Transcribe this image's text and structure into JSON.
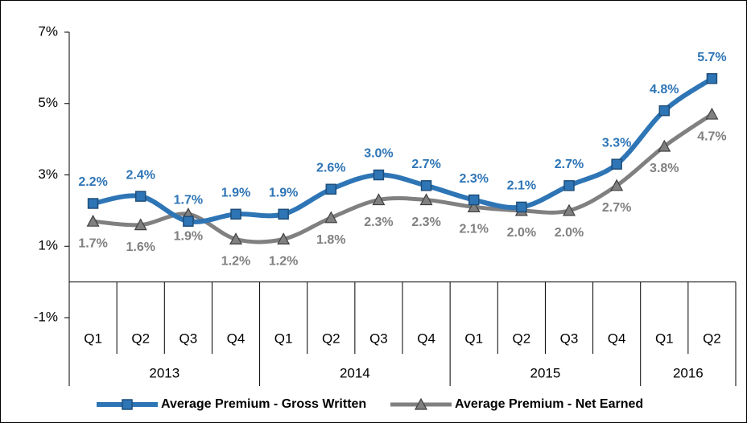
{
  "chart_data": {
    "type": "line",
    "categories": [
      "Q1",
      "Q2",
      "Q3",
      "Q4",
      "Q1",
      "Q2",
      "Q3",
      "Q4",
      "Q1",
      "Q2",
      "Q3",
      "Q4",
      "Q1",
      "Q2"
    ],
    "year_groups": [
      {
        "name": "2013",
        "count": 4
      },
      {
        "name": "2014",
        "count": 4
      },
      {
        "name": "2015",
        "count": 4
      },
      {
        "name": "2016",
        "count": 2
      }
    ],
    "series": [
      {
        "name": "Average Premium - Gross Written",
        "color": "#2e75b6",
        "marker": "square",
        "values": [
          2.2,
          2.4,
          1.7,
          1.9,
          1.9,
          2.6,
          3.0,
          2.7,
          2.3,
          2.1,
          2.7,
          3.3,
          4.8,
          5.7
        ],
        "value_labels": [
          "2.2%",
          "2.4%",
          "1.7%",
          "1.9%",
          "1.9%",
          "2.6%",
          "3.0%",
          "2.7%",
          "2.3%",
          "2.1%",
          "2.7%",
          "3.3%",
          "4.8%",
          "5.7%"
        ]
      },
      {
        "name": "Average Premium - Net Earned",
        "color": "#808080",
        "marker": "triangle",
        "values": [
          1.7,
          1.6,
          1.9,
          1.2,
          1.2,
          1.8,
          2.3,
          2.3,
          2.1,
          2.0,
          2.0,
          2.7,
          3.8,
          4.7
        ],
        "value_labels": [
          "1.7%",
          "1.6%",
          "1.9%",
          "1.2%",
          "1.2%",
          "1.8%",
          "2.3%",
          "2.3%",
          "2.1%",
          "2.0%",
          "2.0%",
          "2.7%",
          "3.8%",
          "4.7%"
        ]
      }
    ],
    "ylim": [
      -1,
      7
    ],
    "yticks": [
      {
        "value": -1,
        "label": "-1%"
      },
      {
        "value": 1,
        "label": "1%"
      },
      {
        "value": 3,
        "label": "3%"
      },
      {
        "value": 5,
        "label": "5%"
      },
      {
        "value": 7,
        "label": "7%"
      }
    ],
    "grid": false,
    "legend": "bottom"
  }
}
